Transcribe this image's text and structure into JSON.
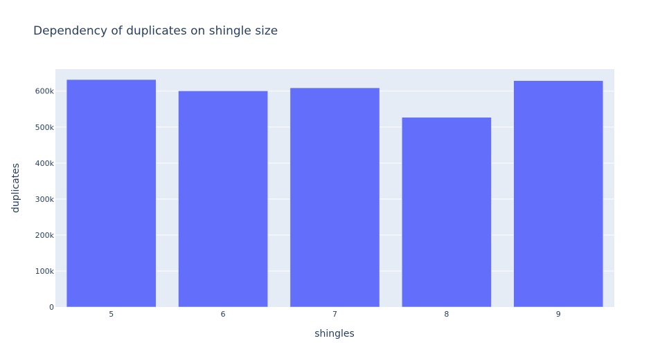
{
  "chart_data": {
    "type": "bar",
    "title": "Dependency of duplicates on shingle size",
    "xlabel": "shingles",
    "ylabel": "duplicates",
    "categories": [
      "5",
      "6",
      "7",
      "8",
      "9"
    ],
    "values": [
      632000,
      600500,
      609000,
      527000,
      629000
    ],
    "ylim": [
      0,
      661000
    ],
    "yticks": [
      0,
      100000,
      200000,
      300000,
      400000,
      500000,
      600000
    ],
    "ytick_labels": [
      "0",
      "100k",
      "200k",
      "300k",
      "400k",
      "500k",
      "600k"
    ],
    "grid": true,
    "colors": {
      "bar": "#636efa",
      "plot_bg": "#e5ecf6",
      "grid": "#ffffff",
      "text": "#2a3f5f"
    }
  }
}
